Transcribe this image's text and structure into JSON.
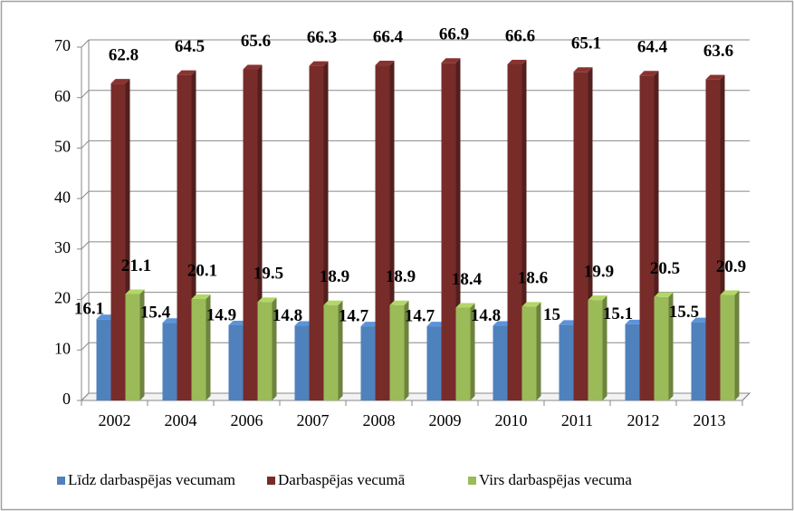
{
  "chart_data": {
    "type": "bar",
    "categories": [
      "2002",
      "2004",
      "2006",
      "2007",
      "2008",
      "2009",
      "2010",
      "2011",
      "2012",
      "2013"
    ],
    "series": [
      {
        "name": "Līdz darbaspējas vecumam",
        "color": "#4f81bd",
        "values": [
          16.1,
          15.4,
          14.9,
          14.8,
          14.7,
          14.7,
          14.8,
          15,
          15.1,
          15.5
        ]
      },
      {
        "name": "Darbaspējas vecumā",
        "color": "#772c2a",
        "values": [
          62.8,
          64.5,
          65.6,
          66.3,
          66.4,
          66.9,
          66.6,
          65.1,
          64.4,
          63.6
        ]
      },
      {
        "name": "Virs darbaspējas vecuma",
        "color": "#9bbb59",
        "values": [
          21.1,
          20.1,
          19.5,
          18.9,
          18.9,
          18.4,
          18.6,
          19.9,
          20.5,
          20.9
        ]
      }
    ],
    "ylim": [
      0,
      70
    ],
    "yticks": [
      0,
      10,
      20,
      30,
      40,
      50,
      60,
      70
    ],
    "grid": true,
    "legend": "bottom"
  }
}
